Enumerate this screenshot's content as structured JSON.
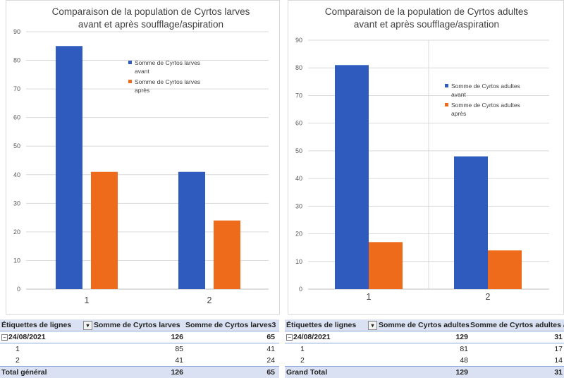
{
  "chart_data": [
    {
      "type": "bar",
      "title_lines": [
        "Comparaison de la population de Cyrtos larves",
        "avant et après soufflage/aspiration"
      ],
      "categories": [
        "1",
        "2"
      ],
      "ylim": [
        0,
        90
      ],
      "yticks": [
        "0",
        "10",
        "20",
        "30",
        "40",
        "50",
        "60",
        "70",
        "80",
        "90"
      ],
      "legend": "right-inside",
      "series": [
        {
          "name_lines": [
            "Somme de Cyrtos larves",
            "avant"
          ],
          "color": "#2e5bbd",
          "values": [
            85,
            41
          ]
        },
        {
          "name_lines": [
            "Somme de Cyrtos larves",
            "après"
          ],
          "color": "#ed6b1a",
          "values": [
            41,
            24
          ]
        }
      ]
    },
    {
      "type": "bar",
      "title_lines": [
        "Comparaison de la population de Cyrtos adultes",
        "avant et après soufflage/aspiration"
      ],
      "categories": [
        "1",
        "2"
      ],
      "ylim": [
        0,
        90
      ],
      "yticks": [
        "0",
        "10",
        "20",
        "30",
        "40",
        "50",
        "60",
        "70",
        "80",
        "90"
      ],
      "legend": "right-inside",
      "series": [
        {
          "name_lines": [
            "Somme de Cyrtos adultes",
            "avant"
          ],
          "color": "#2e5bbd",
          "values": [
            81,
            48
          ]
        },
        {
          "name_lines": [
            "Somme de Cyrtos adultes",
            "après"
          ],
          "color": "#ed6b1a",
          "values": [
            17,
            14
          ]
        }
      ]
    }
  ],
  "pivot_left": {
    "header": {
      "label": "Étiquettes de lignes",
      "filter_icon": "filter-dropdown-icon",
      "col1": "Somme de Cyrtos larves",
      "col2": "Somme de Cyrtos larves3"
    },
    "date_row": {
      "label": "24/08/2021",
      "col1": "126",
      "col2": "65"
    },
    "rows": [
      {
        "label": "1",
        "col1": "85",
        "col2": "41"
      },
      {
        "label": "2",
        "col1": "41",
        "col2": "24"
      }
    ],
    "total": {
      "label": "Total général",
      "col1": "126",
      "col2": "65"
    }
  },
  "pivot_right": {
    "header": {
      "label": "Étiquettes de lignes",
      "filter_icon": "filter-dropdown-icon",
      "col1": "Somme de Cyrtos adultes",
      "col2": "Somme de Cyrtos adultes a"
    },
    "date_row": {
      "label": "24/08/2021",
      "col1": "129",
      "col2": "31"
    },
    "rows": [
      {
        "label": "1",
        "col1": "81",
        "col2": "17"
      },
      {
        "label": "2",
        "col1": "48",
        "col2": "14"
      }
    ],
    "total": {
      "label": "Grand Total",
      "col1": "129",
      "col2": "31"
    }
  }
}
